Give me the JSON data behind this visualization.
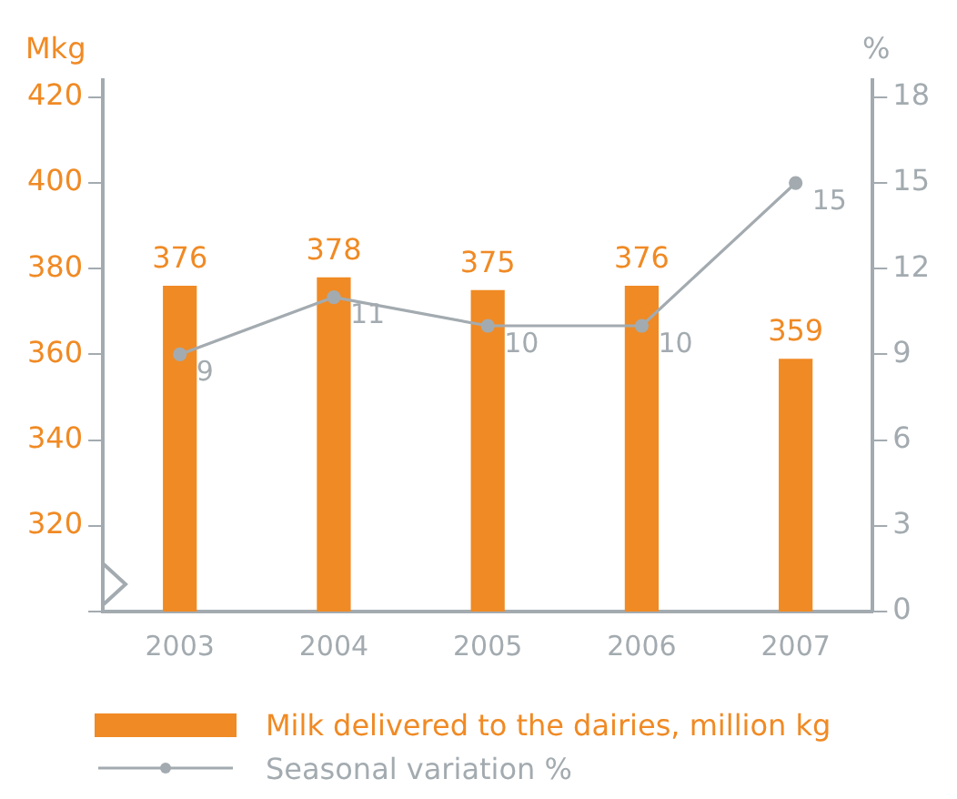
{
  "chart_data": {
    "type": "bar",
    "ylabel": "Mkg",
    "y2label": "%",
    "categories": [
      "2003",
      "2004",
      "2005",
      "2006",
      "2007"
    ],
    "series": [
      {
        "name": "Milk delivered to the dairies, million kg",
        "color": "#f08a24",
        "values": [
          376,
          378,
          375,
          376,
          359
        ]
      },
      {
        "name": "Seasonal variation %",
        "type": "line",
        "axis": "y2",
        "color": "#a3abb0",
        "marker": "circle",
        "values": [
          9,
          11,
          10,
          10,
          15
        ]
      }
    ],
    "ylim": [
      300,
      424
    ],
    "yticks": [
      {
        "value": 300,
        "label": null
      },
      320,
      340,
      360,
      380,
      400,
      420
    ],
    "y2lim": [
      0,
      18.6
    ],
    "y2ticks": [
      0,
      3,
      6,
      9,
      12,
      15,
      18
    ],
    "data_labels": true,
    "grid": false,
    "legend": "bottom"
  }
}
